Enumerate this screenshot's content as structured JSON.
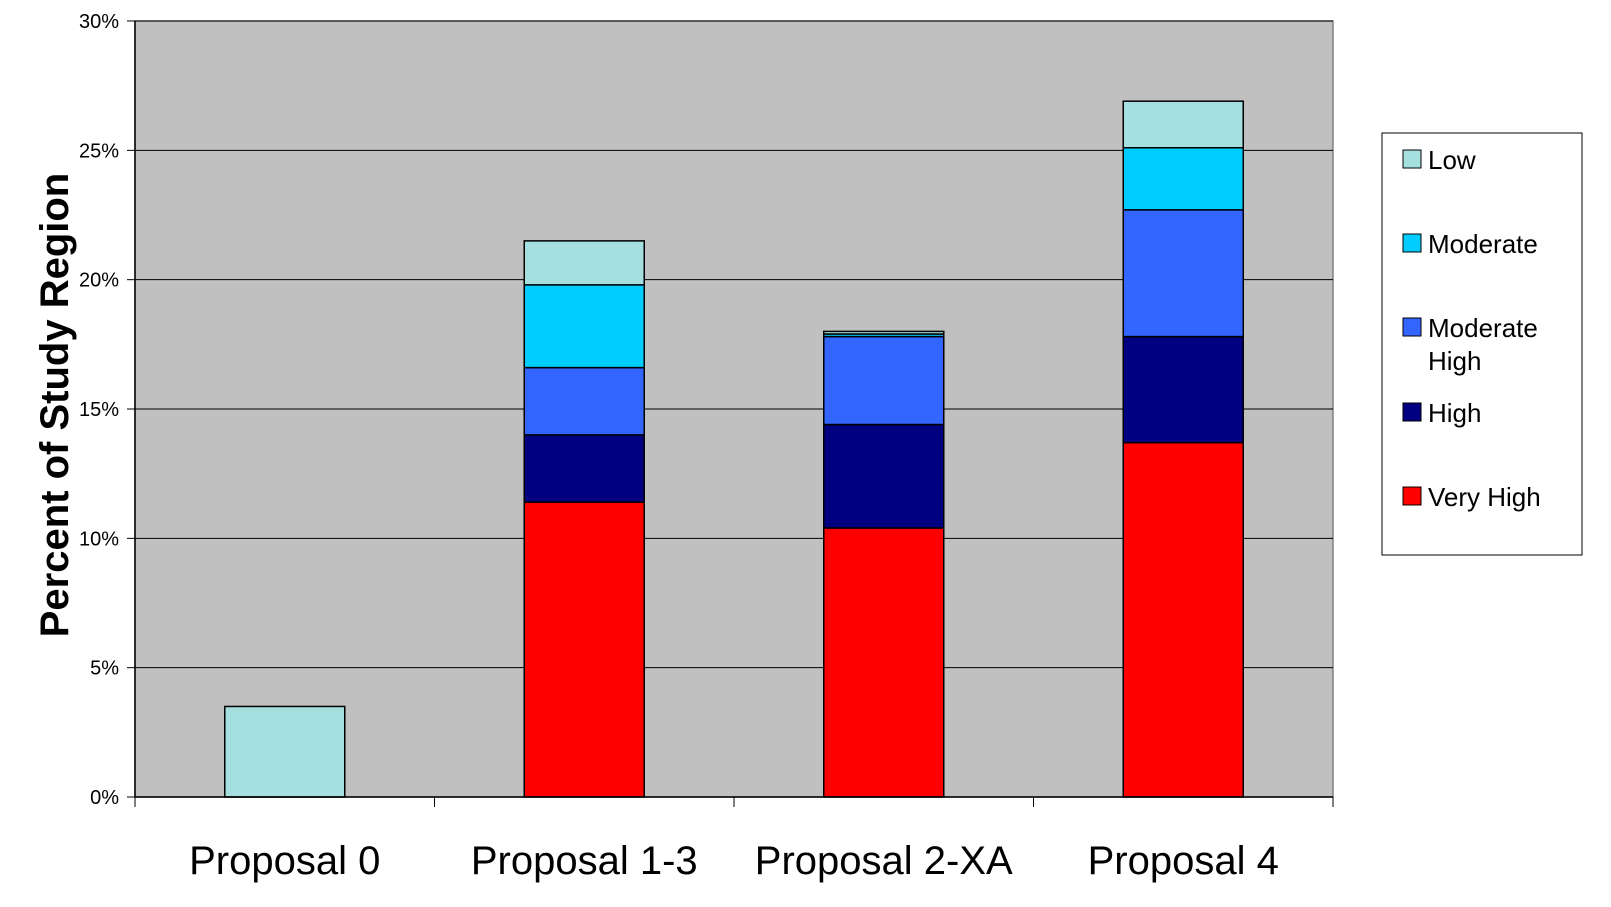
{
  "chart_data": {
    "type": "bar",
    "stacked": true,
    "title": "",
    "xlabel": "",
    "ylabel": "Percent of Study Region",
    "ylim": [
      0,
      30
    ],
    "yticks": [
      0,
      5,
      10,
      15,
      20,
      25,
      30
    ],
    "ytick_labels": [
      "0%",
      "5%",
      "10%",
      "15%",
      "20%",
      "25%",
      "30%"
    ],
    "grid": true,
    "legend_position": "right",
    "categories": [
      "Proposal 0",
      "Proposal 1-3",
      "Proposal 2-XA",
      "Proposal 4"
    ],
    "series": [
      {
        "name": "Very High",
        "color": "#ff0000",
        "values": [
          0,
          11.4,
          10.4,
          13.7
        ]
      },
      {
        "name": "High",
        "color": "#000080",
        "values": [
          0,
          2.6,
          4.0,
          4.1
        ]
      },
      {
        "name": "Moderate High",
        "color": "#3366ff",
        "values": [
          0,
          2.6,
          3.4,
          4.9
        ]
      },
      {
        "name": "Moderate",
        "color": "#00ccff",
        "values": [
          0,
          3.2,
          0.1,
          2.4
        ]
      },
      {
        "name": "Low",
        "color": "#a6dfe0",
        "values": [
          3.5,
          1.7,
          0.1,
          1.8
        ]
      }
    ],
    "legend_order": [
      "Low",
      "Moderate",
      "Moderate High",
      "High",
      "Very High"
    ],
    "legend_label_lines": {
      "Low": [
        "Low"
      ],
      "Moderate": [
        "Moderate"
      ],
      "Moderate High": [
        "Moderate",
        "High"
      ],
      "High": [
        "High"
      ],
      "Very High": [
        "Very High"
      ]
    },
    "plot_background": "#c0c0c0"
  }
}
